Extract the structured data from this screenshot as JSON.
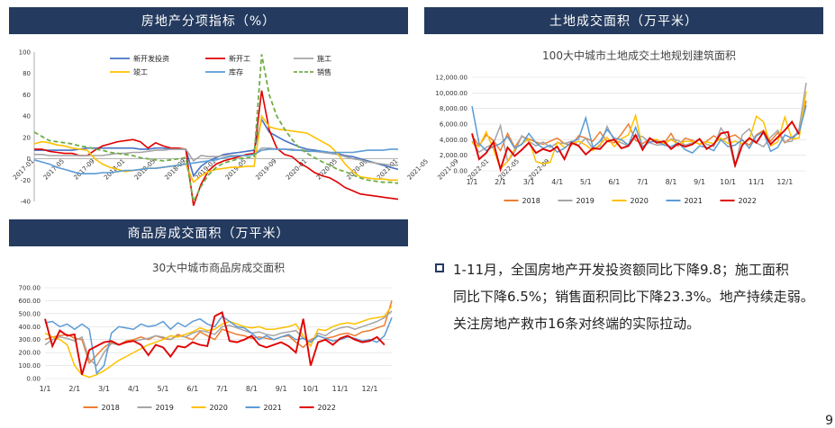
{
  "headers": {
    "top_left": "房地产分项指标（%）",
    "top_right": "土地成交面积（万平米）",
    "bottom_left": "商品房成交面积（万平米）"
  },
  "note": {
    "line1": "1-11月，全国房地产开发投资额同比下降9.8；施工面积",
    "line2": "同比下降6.5%；销售面积同比下降23.3%。地产持续走弱。",
    "line3": "关注房地产救市16条对终端的实际拉动。"
  },
  "page_number": "9",
  "colors": {
    "header_bg": "#243a5e",
    "c2018": "#ed7d31",
    "c2019": "#a5a5a5",
    "c2020": "#ffc000",
    "c2021": "#5b9bd5",
    "c2022": "#e00000"
  },
  "chart_data": [
    {
      "id": "indicators",
      "type": "line",
      "title": "",
      "ylim": [
        -40,
        100
      ],
      "y_ticks": [
        "100",
        "80",
        "60",
        "40",
        "20",
        "0",
        "-20",
        "-40"
      ],
      "x_labels": [
        "2017-01",
        "2017-05",
        "2017-09",
        "2018-01",
        "2018-05",
        "2018-09",
        "2019-01",
        "2019-05",
        "2019-09",
        "2020-01",
        "2020-05",
        "2020-09",
        "2021-01",
        "2021-05",
        "2021-09",
        "2022-01",
        "2022-05",
        "2022-09"
      ],
      "series": [
        {
          "name": "新开发投资",
          "color": "#4472c4",
          "dash": false,
          "values": [
            8,
            8,
            8,
            8,
            8,
            8,
            9,
            10,
            10,
            10,
            10,
            10,
            10,
            10,
            9,
            9,
            10,
            10,
            9,
            9,
            9,
            -16,
            -7,
            -2,
            1,
            4,
            5,
            6,
            7,
            8,
            37,
            25,
            21,
            17,
            14,
            11,
            9,
            8,
            7,
            6,
            5,
            3,
            2,
            0,
            -2,
            -4,
            -6,
            -8,
            -10
          ]
        },
        {
          "name": "新开工",
          "color": "#e00000",
          "dash": false,
          "values": [
            9,
            9,
            7,
            6,
            5,
            5,
            3,
            3,
            8,
            12,
            14,
            16,
            17,
            18,
            16,
            10,
            15,
            12,
            10,
            10,
            9,
            -44,
            -24,
            -11,
            -5,
            -2,
            0,
            2,
            4,
            5,
            64,
            27,
            10,
            4,
            2,
            -4,
            -8,
            -13,
            -16,
            -18,
            -22,
            -27,
            -30,
            -33,
            -34,
            -35,
            -36,
            -37,
            -38
          ]
        },
        {
          "name": "施工",
          "color": "#a5a5a5",
          "dash": false,
          "values": [
            4,
            4,
            3,
            3,
            3,
            3,
            3,
            3,
            3,
            3,
            4,
            5,
            5,
            6,
            6,
            7,
            8,
            8,
            9,
            9,
            9,
            -2,
            3,
            2,
            2,
            3,
            3,
            3,
            3,
            4,
            10,
            10,
            9,
            9,
            9,
            8,
            8,
            7,
            6,
            5,
            4,
            2,
            0,
            -1,
            -3,
            -4,
            -5,
            -6,
            -6
          ]
        },
        {
          "name": "竣工",
          "color": "#ffc000",
          "dash": false,
          "values": [
            14,
            16,
            15,
            13,
            12,
            10,
            9,
            8,
            0,
            -5,
            -8,
            -10,
            -12,
            -11,
            -10,
            -9,
            -9,
            -8,
            -7,
            -6,
            -5,
            -22,
            -16,
            -12,
            -10,
            -9,
            -8,
            -8,
            -7,
            -7,
            40,
            30,
            28,
            27,
            26,
            25,
            24,
            20,
            16,
            12,
            5,
            -5,
            -12,
            -17,
            -18,
            -19,
            -19,
            -20,
            -20
          ]
        },
        {
          "name": "库存",
          "color": "#5b9bd5",
          "dash": false,
          "values": [
            -1,
            -3,
            -5,
            -8,
            -10,
            -12,
            -14,
            -14,
            -14,
            -13,
            -13,
            -12,
            -11,
            -11,
            -10,
            -9,
            -9,
            -8,
            -7,
            -6,
            -5,
            -4,
            -3,
            -2,
            -1,
            1,
            2,
            3,
            3,
            4,
            8,
            9,
            9,
            9,
            8,
            8,
            7,
            7,
            7,
            6,
            6,
            6,
            6,
            7,
            8,
            8,
            8,
            9,
            9
          ]
        },
        {
          "name": "销售",
          "color": "#70ad47",
          "dash": true,
          "values": [
            25,
            21,
            17,
            16,
            15,
            14,
            12,
            11,
            9,
            8,
            6,
            5,
            4,
            3,
            1,
            0,
            -1,
            -2,
            -1,
            0,
            1,
            -40,
            -26,
            -15,
            -8,
            -4,
            -2,
            0,
            1,
            2,
            98,
            60,
            40,
            28,
            18,
            10,
            5,
            1,
            -3,
            -6,
            -10,
            -12,
            -15,
            -18,
            -20,
            -21,
            -22,
            -22,
            -23
          ]
        }
      ]
    },
    {
      "id": "land",
      "type": "line",
      "title": "100大中城市土地成交土地规划建筑面积",
      "ylim": [
        0,
        12000
      ],
      "y_ticks": [
        "12,000.00",
        "10,000.00",
        "8,000.00",
        "6,000.00",
        "4,000.00",
        "2,000.00",
        "0.00"
      ],
      "x_labels": [
        "1/1",
        "2/1",
        "3/1",
        "4/1",
        "5/1",
        "6/1",
        "7/1",
        "8/1",
        "9/1",
        "10/1",
        "11/1",
        "12/1"
      ],
      "series": [
        {
          "name": "2018",
          "color": "#ed7d31",
          "values": [
            4500,
            3200,
            4600,
            3900,
            2600,
            4800,
            3000,
            4400,
            4100,
            3700,
            3400,
            3800,
            4200,
            3500,
            3300,
            4500,
            4200,
            3800,
            5000,
            3800,
            3600,
            4700,
            6000,
            3900,
            3500,
            4100,
            3800,
            3500,
            4800,
            3200,
            4200,
            3900,
            3400,
            3800,
            4500,
            3900,
            4300,
            4600,
            3900,
            3300,
            4600,
            5200,
            3800,
            4900,
            3600,
            4300,
            5000,
            9000
          ]
        },
        {
          "name": "2019",
          "color": "#a5a5a5",
          "values": [
            3800,
            2400,
            3000,
            3500,
            5800,
            1200,
            2400,
            4500,
            3800,
            3200,
            3700,
            3000,
            3600,
            3500,
            3800,
            3300,
            4200,
            2800,
            3200,
            5700,
            3900,
            3600,
            3200,
            4500,
            4400,
            3600,
            3300,
            3400,
            4100,
            3900,
            3300,
            3600,
            4000,
            3400,
            3100,
            5500,
            4200,
            500,
            4600,
            5400,
            3600,
            3100,
            4300,
            5200,
            3700,
            3800,
            5400,
            11300
          ]
        },
        {
          "name": "2020",
          "color": "#ffc000",
          "values": [
            3600,
            3100,
            5000,
            2800,
            300,
            1200,
            2800,
            3500,
            4100,
            1200,
            900,
            1100,
            3700,
            3000,
            3500,
            3800,
            3300,
            2600,
            3400,
            4300,
            3100,
            4100,
            4600,
            7100,
            2900,
            4000,
            4000,
            3500,
            4000,
            3400,
            3800,
            3800,
            3400,
            3700,
            3500,
            4200,
            3500,
            3800,
            3500,
            4000,
            7000,
            6300,
            3200,
            3700,
            6900,
            4100,
            4200,
            10200
          ]
        },
        {
          "name": "2021",
          "color": "#5b9bd5",
          "values": [
            8300,
            3500,
            2600,
            3100,
            3500,
            4400,
            2900,
            3400,
            4800,
            3600,
            2900,
            3300,
            2400,
            2900,
            3700,
            4100,
            6800,
            3000,
            3800,
            5300,
            4200,
            4000,
            3300,
            5600,
            3100,
            3700,
            3800,
            3300,
            3100,
            3600,
            2700,
            2300,
            3200,
            3000,
            2600,
            4000,
            3100,
            3300,
            4000,
            2900,
            4500,
            5000,
            2500,
            3000,
            4600,
            4200,
            4900,
            8400
          ]
        },
        {
          "name": "2022",
          "color": "#e00000",
          "values": [
            4800,
            1500,
            2300,
            3700,
            200,
            3000,
            1900,
            2700,
            3600,
            2300,
            2800,
            2500,
            3100,
            1500,
            3600,
            3200,
            2100,
            2900,
            2800,
            3800,
            4000,
            2900,
            3200,
            4600,
            2700,
            4200,
            3600,
            3800,
            2800,
            3500,
            3100,
            3400,
            4100,
            2800,
            3400,
            4800,
            5000,
            700,
            3300,
            4200,
            3600,
            5000,
            3400,
            4300,
            5200,
            6300,
            4700
          ]
        }
      ]
    },
    {
      "id": "housing",
      "type": "line",
      "title": "30大中城市商品房成交面积",
      "ylim": [
        0,
        700
      ],
      "y_ticks": [
        "700.00",
        "600.00",
        "500.00",
        "400.00",
        "300.00",
        "200.00",
        "100.00",
        "0.00"
      ],
      "x_labels": [
        "1/1",
        "2/1",
        "3/1",
        "4/1",
        "5/1",
        "6/1",
        "7/1",
        "8/1",
        "9/1",
        "10/1",
        "11/1",
        "12/1"
      ],
      "series": [
        {
          "name": "2018",
          "color": "#ed7d31",
          "values": [
            300,
            320,
            330,
            340,
            310,
            300,
            120,
            180,
            240,
            280,
            260,
            290,
            300,
            320,
            300,
            330,
            310,
            300,
            340,
            320,
            300,
            360,
            330,
            300,
            380,
            360,
            340,
            330,
            310,
            320,
            310,
            300,
            320,
            330,
            280,
            240,
            300,
            330,
            310,
            320,
            340,
            350,
            330,
            360,
            370,
            390,
            410,
            600
          ]
        },
        {
          "name": "2019",
          "color": "#a5a5a5",
          "values": [
            260,
            300,
            320,
            310,
            290,
            320,
            150,
            100,
            200,
            270,
            260,
            280,
            290,
            300,
            310,
            330,
            320,
            300,
            330,
            320,
            350,
            370,
            360,
            340,
            400,
            410,
            390,
            370,
            350,
            360,
            340,
            330,
            350,
            360,
            370,
            310,
            280,
            350,
            330,
            370,
            390,
            400,
            380,
            400,
            420,
            440,
            470,
            520
          ]
        },
        {
          "name": "2020",
          "color": "#ffc000",
          "values": [
            350,
            320,
            300,
            260,
            100,
            30,
            10,
            30,
            60,
            100,
            140,
            170,
            200,
            230,
            260,
            280,
            300,
            330,
            320,
            340,
            360,
            390,
            370,
            380,
            420,
            440,
            420,
            400,
            390,
            400,
            380,
            380,
            390,
            400,
            420,
            330,
            250,
            380,
            370,
            400,
            420,
            430,
            420,
            440,
            460,
            470,
            480,
            560
          ]
        },
        {
          "name": "2021",
          "color": "#5b9bd5",
          "values": [
            430,
            440,
            400,
            420,
            380,
            420,
            380,
            40,
            100,
            350,
            400,
            390,
            380,
            420,
            400,
            410,
            440,
            380,
            430,
            400,
            440,
            460,
            420,
            400,
            480,
            440,
            400,
            390,
            350,
            300,
            330,
            300,
            320,
            340,
            300,
            310,
            280,
            330,
            310,
            290,
            300,
            320,
            310,
            290,
            300,
            280,
            330,
            470
          ]
        },
        {
          "name": "2022",
          "color": "#e00000",
          "values": [
            460,
            250,
            370,
            330,
            340,
            30,
            220,
            250,
            280,
            290,
            260,
            280,
            290,
            260,
            180,
            260,
            240,
            170,
            250,
            240,
            280,
            260,
            250,
            480,
            510,
            290,
            280,
            300,
            330,
            260,
            240,
            260,
            280,
            250,
            200,
            460,
            100,
            280,
            300,
            260,
            310,
            330,
            300,
            280,
            290,
            320,
            260
          ]
        }
      ]
    }
  ]
}
